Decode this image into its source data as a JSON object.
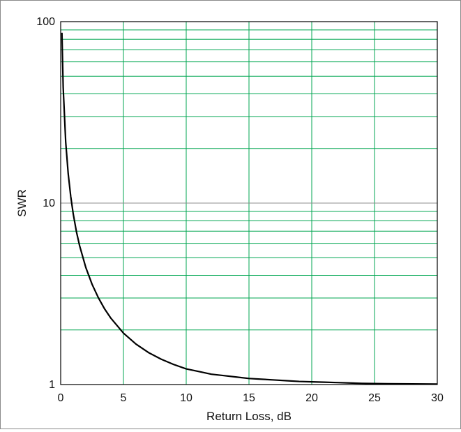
{
  "chart_data": {
    "type": "line",
    "title": "",
    "xlabel": "Return Loss, dB",
    "ylabel": "SWR",
    "xlim": [
      0,
      30
    ],
    "ylim": [
      1,
      100
    ],
    "yscale": "log",
    "grid": true,
    "x_ticks": [
      0,
      5,
      10,
      15,
      20,
      25,
      30
    ],
    "y_ticks": [
      1,
      10,
      100
    ],
    "x_tick_labels": [
      "0",
      "5",
      "10",
      "15",
      "20",
      "25",
      "30"
    ],
    "y_tick_labels": [
      "1",
      "10",
      "100"
    ],
    "colors": {
      "grid_minor": "#00a651",
      "grid_major": "#8c8c8c",
      "line": "#000000",
      "axis": "#000000"
    },
    "series": [
      {
        "x": [
          0.1,
          0.2,
          0.4,
          0.6,
          0.8,
          1.0,
          1.25,
          1.5,
          2.0,
          2.5,
          3.0,
          3.5,
          4.0,
          5.0,
          6.0,
          7.0,
          8.0,
          9.0,
          10.0,
          11.0,
          12.0,
          13.0,
          14.0,
          15.0,
          16.0,
          17.0,
          18.0,
          19.0,
          20.0,
          21.0,
          22.0,
          23.0,
          24.0,
          25.0,
          26.0,
          27.0,
          28.0,
          29.0,
          30.0
        ],
        "y": [
          86.9,
          43.4,
          21.7,
          14.5,
          10.9,
          8.72,
          6.98,
          5.85,
          4.42,
          3.57,
          3.01,
          2.61,
          2.32,
          1.92,
          1.67,
          1.5,
          1.38,
          1.29,
          1.22,
          1.18,
          1.14,
          1.12,
          1.1,
          1.08,
          1.07,
          1.06,
          1.05,
          1.04,
          1.035,
          1.03,
          1.025,
          1.02,
          1.015,
          1.012,
          1.01,
          1.009,
          1.008,
          1.007,
          1.006
        ]
      }
    ]
  }
}
